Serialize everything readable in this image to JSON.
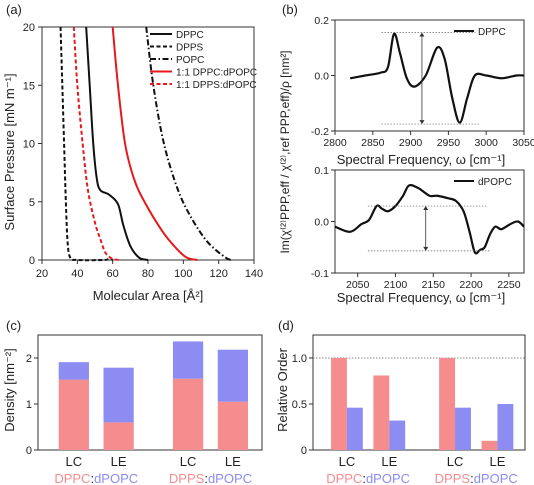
{
  "colors": {
    "black": "#111111",
    "red": "#e41a1c",
    "pink": "#f58d8f",
    "blue": "#8c8cf2",
    "grey": "#666666"
  },
  "chart_data": [
    {
      "panel": "(a)",
      "type": "line",
      "xlabel": "Molecular Area [Å²]",
      "ylabel": "Surface Pressure [mN m⁻¹]",
      "xlim": [
        20,
        140
      ],
      "ylim": [
        0,
        20
      ],
      "xticks": [
        20,
        40,
        60,
        80,
        100,
        120,
        140
      ],
      "yticks": [
        0,
        5,
        10,
        15,
        20
      ],
      "legend": "top-right",
      "series": [
        {
          "name": "DPPC",
          "color": "#111111",
          "dash": "solid",
          "points": [
            [
              45,
              20
            ],
            [
              47,
              15
            ],
            [
              49,
              10
            ],
            [
              51,
              7
            ],
            [
              53,
              6
            ],
            [
              58,
              5.6
            ],
            [
              63,
              4.8
            ],
            [
              66,
              3
            ],
            [
              70,
              1.2
            ],
            [
              75,
              0.2
            ],
            [
              80,
              0
            ]
          ]
        },
        {
          "name": "DPPS",
          "color": "#111111",
          "dash": "dash",
          "points": [
            [
              30.5,
              20
            ],
            [
              31.5,
              15
            ],
            [
              32.5,
              10
            ],
            [
              33.5,
              5
            ],
            [
              34.5,
              1.5
            ],
            [
              36,
              0.2
            ],
            [
              40,
              0
            ],
            [
              55,
              0
            ],
            [
              58,
              0.1
            ],
            [
              60,
              0
            ]
          ]
        },
        {
          "name": "POPC",
          "color": "#111111",
          "dash": "dashdot",
          "points": [
            [
              79,
              20
            ],
            [
              83,
              15
            ],
            [
              89,
              10
            ],
            [
              97,
              6
            ],
            [
              105,
              3.5
            ],
            [
              114,
              1.5
            ],
            [
              124,
              0.2
            ],
            [
              128,
              0
            ]
          ]
        },
        {
          "name": "1:1 DPPC:dPOPC",
          "color": "#e41a1c",
          "dash": "solid",
          "points": [
            [
              60,
              20
            ],
            [
              63,
              15
            ],
            [
              67,
              10
            ],
            [
              72,
              7
            ],
            [
              78,
              5
            ],
            [
              88,
              2.5
            ],
            [
              96,
              1
            ],
            [
              102,
              0.2
            ],
            [
              108,
              0
            ]
          ]
        },
        {
          "name": "1:1 DPPS:dPOPC",
          "color": "#e41a1c",
          "dash": "dash",
          "points": [
            [
              38,
              20
            ],
            [
              40,
              15
            ],
            [
              43,
              10
            ],
            [
              46,
              6
            ],
            [
              50,
              3.2
            ],
            [
              53,
              1.8
            ],
            [
              56,
              0.6
            ],
            [
              60,
              0.1
            ],
            [
              64,
              0
            ]
          ]
        }
      ]
    },
    {
      "panel": "(b)",
      "type": "line",
      "ylabel": "Im(χ⁽²⁾PPP,eff / χ⁽²⁾,ref PPP,eff)/ρ [nm²]",
      "subplots": [
        {
          "xlabel": "Spectral Frequency, ω [cm⁻¹]",
          "xlim": [
            2800,
            3050
          ],
          "ylim": [
            -0.2,
            0.2
          ],
          "xticks": [
            2800,
            2850,
            2900,
            2950,
            3000,
            3050
          ],
          "yticks": [
            -0.2,
            0,
            0.2
          ],
          "legend": "top-right",
          "series": [
            {
              "name": "DPPC",
              "color": "#111111",
              "points": [
                [
                  2820,
                  -0.01
                ],
                [
                  2840,
                  0
                ],
                [
                  2860,
                  0.01
                ],
                [
                  2870,
                  0.03
                ],
                [
                  2878,
                  0.15
                ],
                [
                  2886,
                  0.08
                ],
                [
                  2895,
                  -0.01
                ],
                [
                  2905,
                  -0.04
                ],
                [
                  2920,
                  0
                ],
                [
                  2935,
                  0.1
                ],
                [
                  2945,
                  0.06
                ],
                [
                  2955,
                  -0.08
                ],
                [
                  2965,
                  -0.17
                ],
                [
                  2975,
                  -0.08
                ],
                [
                  2985,
                  0
                ],
                [
                  3000,
                  0
                ],
                [
                  3020,
                  -0.01
                ],
                [
                  3040,
                  0
                ],
                [
                  3050,
                  0
                ]
              ]
            }
          ],
          "guides": {
            "top": 0.155,
            "bottom": -0.175,
            "x_from": 2880,
            "x_to": 2970,
            "arrow_x": 2915
          }
        },
        {
          "xlabel": "Spectral Frequency, ω [cm⁻¹]",
          "xlim": [
            2020,
            2270
          ],
          "ylim": [
            -0.1,
            0.1
          ],
          "xticks": [
            2050,
            2100,
            2150,
            2200,
            2250
          ],
          "yticks": [
            -0.1,
            0,
            0.1
          ],
          "legend": "top-right",
          "series": [
            {
              "name": "dPOPC",
              "color": "#111111",
              "points": [
                [
                  2020,
                  -0.01
                ],
                [
                  2040,
                  -0.02
                ],
                [
                  2055,
                  -0.005
                ],
                [
                  2065,
                  0.003
                ],
                [
                  2075,
                  0.03
                ],
                [
                  2082,
                  0.025
                ],
                [
                  2090,
                  0.02
                ],
                [
                  2100,
                  0.03
                ],
                [
                  2110,
                  0.05
                ],
                [
                  2118,
                  0.07
                ],
                [
                  2130,
                  0.065
                ],
                [
                  2145,
                  0.05
                ],
                [
                  2155,
                  0.05
                ],
                [
                  2170,
                  0.045
                ],
                [
                  2180,
                  0.04
                ],
                [
                  2190,
                  0.02
                ],
                [
                  2198,
                  -0.02
                ],
                [
                  2205,
                  -0.06
                ],
                [
                  2212,
                  -0.055
                ],
                [
                  2218,
                  -0.05
                ],
                [
                  2225,
                  -0.025
                ],
                [
                  2232,
                  -0.01
                ],
                [
                  2240,
                  -0.015
                ],
                [
                  2252,
                  -0.005
                ],
                [
                  2262,
                  0
                ],
                [
                  2270,
                  -0.01
                ]
              ]
            }
          ],
          "guides": {
            "top": 0.03,
            "bottom": -0.057,
            "x_from": 2082,
            "x_to": 2205,
            "arrow_x": 2140
          }
        }
      ]
    },
    {
      "panel": "(c)",
      "type": "bar",
      "ylabel": "Density [nm⁻²]",
      "ylim": [
        0,
        2.5
      ],
      "yticks": [
        0,
        1,
        2
      ],
      "tick_labels": [
        "LC",
        "LE",
        "LC",
        "LE"
      ],
      "group_labels": [
        {
          "first": "DPPC",
          "colon": ":",
          "second": "dPOPC"
        },
        {
          "first": "DPPS",
          "colon": ":",
          "second": "dPOPC"
        }
      ],
      "stack_bottom": {
        "name": "DPPC / DPPS",
        "color": "#f58d8f",
        "values": [
          1.53,
          0.6,
          1.55,
          1.05
        ]
      },
      "stack_top": {
        "name": "dPOPC",
        "color": "#8c8cf2",
        "totals": [
          1.91,
          1.79,
          2.36,
          2.18
        ]
      }
    },
    {
      "panel": "(d)",
      "type": "bar",
      "ylabel": "Relative Order",
      "ylim": [
        0,
        1.25
      ],
      "yticks": [
        0,
        0.5,
        1.0
      ],
      "reference_line": 1.0,
      "tick_labels": [
        "LC",
        "LE",
        "LC",
        "LE"
      ],
      "group_labels": [
        {
          "first": "DPPC",
          "colon": ":",
          "second": "dPOPC"
        },
        {
          "first": "DPPS",
          "colon": ":",
          "second": "dPOPC"
        }
      ],
      "series": [
        {
          "name": "DPPC / DPPS",
          "color": "#f58d8f",
          "values": [
            1.0,
            0.81,
            1.0,
            0.1
          ]
        },
        {
          "name": "dPOPC",
          "color": "#8c8cf2",
          "values": [
            0.46,
            0.32,
            0.46,
            0.5
          ]
        }
      ]
    }
  ]
}
